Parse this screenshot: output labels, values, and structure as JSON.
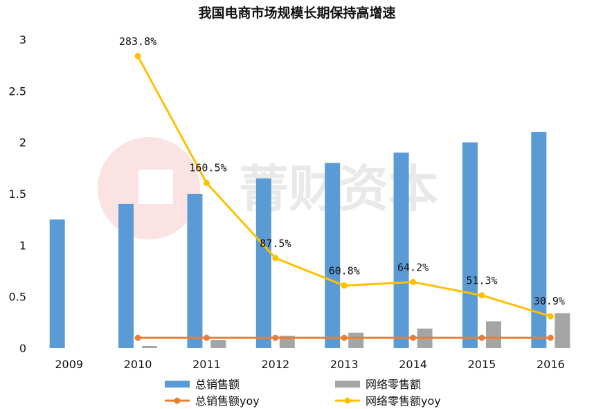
{
  "chart_data": {
    "type": "bar",
    "title": "我国电商市场规模长期保持高增速",
    "categories": [
      "2009",
      "2010",
      "2011",
      "2012",
      "2013",
      "2014",
      "2015",
      "2016"
    ],
    "ylim": [
      0,
      3
    ],
    "yticks": [
      "0",
      "0.5",
      "1",
      "1.5",
      "2",
      "2.5",
      "3"
    ],
    "grid": false,
    "legend_position": "bottom",
    "series": [
      {
        "name": "总销售额",
        "kind": "bar",
        "color": "#5b9bd5",
        "values": [
          1.25,
          1.4,
          1.5,
          1.65,
          1.8,
          1.9,
          2.0,
          2.1
        ]
      },
      {
        "name": "网络零售额",
        "kind": "bar",
        "color": "#a5a5a5",
        "values": [
          null,
          0.02,
          0.08,
          0.12,
          0.15,
          0.19,
          0.26,
          0.34
        ]
      },
      {
        "name": "总销售额yoy",
        "kind": "line",
        "color": "#ed7d31",
        "values": [
          null,
          0.1,
          0.1,
          0.1,
          0.1,
          0.1,
          0.1,
          0.1
        ]
      },
      {
        "name": "网络零售额yoy",
        "kind": "line",
        "color": "#ffc000",
        "values": [
          null,
          2.838,
          1.605,
          0.875,
          0.608,
          0.642,
          0.513,
          0.309
        ],
        "data_labels": [
          null,
          "283.8%",
          "160.5%",
          "87.5%",
          "60.8%",
          "64.2%",
          "51.3%",
          "30.9%"
        ]
      }
    ],
    "watermark": {
      "text": "菁财资本",
      "color": "#e9e9e9",
      "logo_color": "#fbe3e3"
    }
  }
}
